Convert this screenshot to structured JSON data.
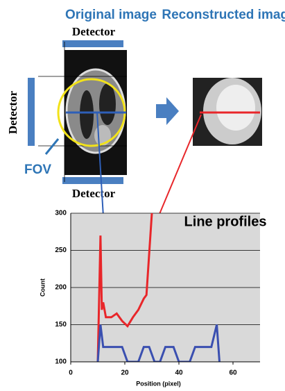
{
  "figure": {
    "original_title": "Original image",
    "reconstructed_title": "Reconstructed image",
    "detector_top": "Detector",
    "detector_left": "Detector",
    "detector_bottom": "Detector",
    "fov": "FOV",
    "annotation": "Line profiles"
  },
  "chart_data": {
    "type": "line",
    "xlabel": "Position (pixel)",
    "ylabel": "Count",
    "xlim": [
      0,
      70
    ],
    "ylim": [
      100,
      300
    ],
    "xticks": [
      0,
      20,
      40,
      60
    ],
    "yticks": [
      100,
      150,
      200,
      250,
      300
    ],
    "grid": true,
    "background": "#d9d9d9",
    "series": [
      {
        "color": "#e8262a",
        "x": [
          10,
          11,
          11.5,
          12,
          13,
          15,
          17,
          19,
          21,
          23,
          25,
          27,
          28,
          30
        ],
        "values": [
          100,
          270,
          170,
          180,
          160,
          160,
          165,
          155,
          148,
          160,
          170,
          185,
          190,
          300
        ]
      },
      {
        "color": "#3a4fb0",
        "x": [
          10,
          11,
          12,
          19,
          21,
          25,
          27,
          29,
          31,
          33,
          35,
          38,
          40,
          44,
          46,
          52,
          54,
          55
        ],
        "values": [
          100,
          150,
          120,
          120,
          100,
          100,
          120,
          120,
          100,
          100,
          120,
          120,
          100,
          100,
          120,
          120,
          150,
          100
        ]
      }
    ]
  }
}
